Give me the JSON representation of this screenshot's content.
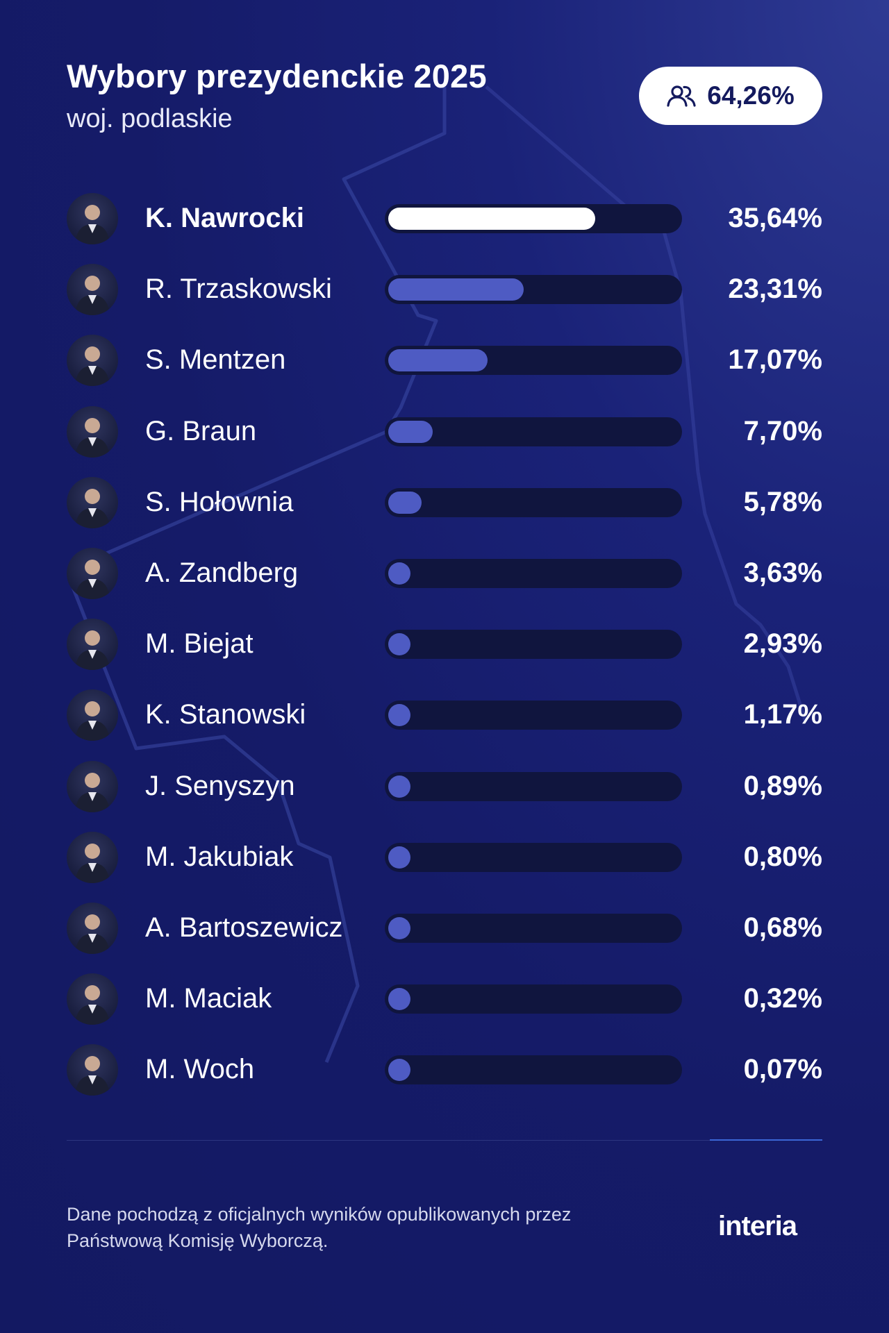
{
  "header": {
    "title": "Wybory prezydenckie 2025",
    "subtitle": "woj. podlaskie",
    "turnout_icon": "people-icon",
    "turnout": "64,26%"
  },
  "chart_data": {
    "type": "bar",
    "orientation": "horizontal",
    "xlim": [
      0,
      50
    ],
    "categories": [
      "K. Nawrocki",
      "R. Trzaskowski",
      "S. Mentzen",
      "G. Braun",
      "S. Hołownia",
      "A. Zandberg",
      "M. Biejat",
      "K. Stanowski",
      "J. Senyszyn",
      "M. Jakubiak",
      "A. Bartoszewicz",
      "M. Maciak",
      "M. Woch"
    ],
    "values": [
      35.64,
      23.31,
      17.07,
      7.7,
      5.78,
      3.63,
      2.93,
      1.17,
      0.89,
      0.8,
      0.68,
      0.32,
      0.07
    ],
    "labels": [
      "35,64%",
      "23,31%",
      "17,07%",
      "7,70%",
      "5,78%",
      "3,63%",
      "2,93%",
      "1,17%",
      "0,89%",
      "0,80%",
      "0,68%",
      "0,32%",
      "0,07%"
    ],
    "highlight_index": 0,
    "colors": {
      "highlight": "#ffffff",
      "bar": "#4e5bc3",
      "track": "#10153e"
    }
  },
  "footer": {
    "note": "Dane pochodzą z oficjalnych wyników opublikowanych przez Państwową Komisję Wyborczą.",
    "logo": "interia"
  },
  "colors": {
    "background": "#151b68",
    "accent": "#3b66d6"
  }
}
